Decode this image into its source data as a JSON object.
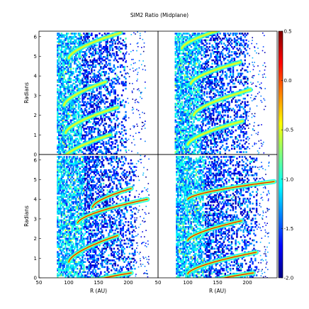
{
  "chart_data": {
    "type": "heatmap",
    "title": "SIM2 Ratio (Midplane)",
    "xlabel": "R (AU)",
    "ylabel": "Radians",
    "xlim": [
      50,
      250
    ],
    "ylim": [
      0,
      6.28
    ],
    "x_ticks": [
      "50",
      "100",
      "150",
      "200"
    ],
    "y_ticks": [
      "0",
      "1",
      "2",
      "3",
      "4",
      "5",
      "6"
    ],
    "layout": "2x2 panels with shared axes",
    "colorbar": {
      "range": [
        -2.0,
        0.5
      ],
      "ticks": [
        "0.5",
        "0.0",
        "-0.5",
        "-1.0",
        "-1.5",
        "-2.0"
      ],
      "colormap": "jet"
    },
    "panels": [
      {
        "position": "top-left",
        "spiral_arms": [
          {
            "tip_r": 187,
            "tip_theta": 6.2,
            "end_r": 100,
            "end_theta": 4.9
          },
          {
            "tip_r": 162,
            "tip_theta": 3.7,
            "end_r": 92,
            "end_theta": 2.5
          },
          {
            "tip_r": 182,
            "tip_theta": 2.4,
            "end_r": 95,
            "end_theta": 1.1
          },
          {
            "tip_r": 170,
            "tip_theta": 1.0,
            "end_r": 88,
            "end_theta": -0.3
          }
        ],
        "disk_inner_r": 80,
        "disk_outer_r": 195
      },
      {
        "position": "top-right",
        "spiral_arms": [
          {
            "tip_r": 188,
            "tip_theta": 4.7,
            "end_r": 105,
            "end_theta": 3.6
          },
          {
            "tip_r": 205,
            "tip_theta": 3.3,
            "end_r": 110,
            "end_theta": 2.0
          },
          {
            "tip_r": 192,
            "tip_theta": 1.7,
            "end_r": 100,
            "end_theta": 0.5
          },
          {
            "tip_r": 150,
            "tip_theta": 6.3,
            "end_r": 90,
            "end_theta": 5.4
          }
        ],
        "disk_inner_r": 78,
        "disk_outer_r": 200
      },
      {
        "position": "bottom-left",
        "spiral_arms": [
          {
            "tip_r": 232,
            "tip_theta": 4.0,
            "end_r": 115,
            "end_theta": 2.8
          },
          {
            "tip_r": 205,
            "tip_theta": 4.55,
            "end_r": 140,
            "end_theta": 3.6
          },
          {
            "tip_r": 182,
            "tip_theta": 2.15,
            "end_r": 100,
            "end_theta": 0.8
          },
          {
            "tip_r": 205,
            "tip_theta": 0.25,
            "end_r": 100,
            "end_theta": -0.6
          }
        ],
        "disk_inner_r": 80,
        "disk_outer_r": 210
      },
      {
        "position": "bottom-right",
        "spiral_arms": [
          {
            "tip_r": 245,
            "tip_theta": 4.9,
            "end_r": 100,
            "end_theta": 4.0
          },
          {
            "tip_r": 190,
            "tip_theta": 2.9,
            "end_r": 100,
            "end_theta": 1.9
          },
          {
            "tip_r": 215,
            "tip_theta": 1.3,
            "end_r": 100,
            "end_theta": 0.2
          },
          {
            "tip_r": 210,
            "tip_theta": 0.25,
            "end_r": 120,
            "end_theta": -0.4
          }
        ],
        "disk_inner_r": 80,
        "disk_outer_r": 215
      }
    ]
  }
}
